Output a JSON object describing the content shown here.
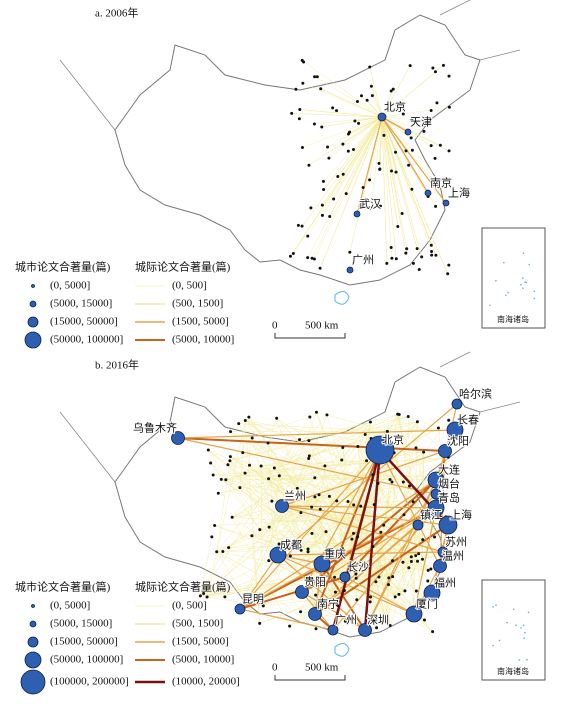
{
  "panels": [
    {
      "title": "a. 2006年",
      "cities": [
        "北京",
        "天津",
        "南京",
        "上海",
        "武汉",
        "广州"
      ],
      "legend_nodes": {
        "title": "城市论文合著量(篇)",
        "items": [
          "(0, 5000]",
          "(5000, 15000]",
          "(15000, 50000]",
          "(50000, 100000]"
        ]
      },
      "legend_links": {
        "title": "城际论文合著量(篇)",
        "items": [
          "(0, 500]",
          "(500, 1500]",
          "(1500, 5000]",
          "(5000, 10000]"
        ]
      },
      "scale": {
        "zero": "0",
        "distance": "500 km"
      },
      "inset_label": "南海诸岛"
    },
    {
      "title": "b. 2016年",
      "cities": [
        "哈尔滨",
        "乌鲁木齐",
        "长春",
        "北京",
        "沈阳",
        "大连",
        "烟台",
        "兰州",
        "青岛",
        "镇江",
        "上海",
        "成都",
        "苏州",
        "温州",
        "重庆",
        "长沙",
        "贵阳",
        "福州",
        "昆明",
        "南宁",
        "厦门",
        "广州",
        "深圳"
      ],
      "legend_nodes": {
        "title": "城市论文合著量(篇)",
        "items": [
          "(0, 5000]",
          "(5000, 15000]",
          "(15000, 50000]",
          "(50000, 100000]",
          "(100000, 200000]"
        ]
      },
      "legend_links": {
        "title": "城际论文合著量(篇)",
        "items": [
          "(0, 500]",
          "(500, 1500]",
          "(1500, 5000]",
          "(5000, 10000]",
          "(10000, 20000]"
        ]
      },
      "scale": {
        "zero": "0",
        "distance": "500 km"
      },
      "inset_label": "南海诸岛"
    }
  ]
}
